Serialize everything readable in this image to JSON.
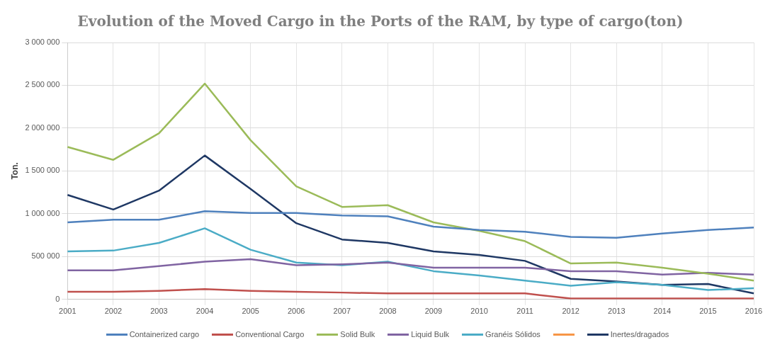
{
  "chart_data": {
    "type": "line",
    "title": "Evolution of the Moved Cargo in the Ports of the RAM, by type of cargo(ton)",
    "ylabel": "Ton.",
    "categories": [
      "2001",
      "2002",
      "2003",
      "2004",
      "2005",
      "2006",
      "2007",
      "2008",
      "2009",
      "2010",
      "2011",
      "2012",
      "2013",
      "2014",
      "2015",
      "2016"
    ],
    "series": [
      {
        "name": "Containerized cargo",
        "color": "#4f81bd",
        "values": [
          900000,
          930000,
          930000,
          1030000,
          1010000,
          1010000,
          980000,
          970000,
          850000,
          810000,
          790000,
          730000,
          720000,
          770000,
          810000,
          840000
        ]
      },
      {
        "name": "Conventional Cargo",
        "color": "#c0504d",
        "values": [
          90000,
          90000,
          100000,
          120000,
          100000,
          90000,
          80000,
          70000,
          70000,
          70000,
          70000,
          10000,
          10000,
          10000,
          10000,
          10000
        ]
      },
      {
        "name": "Solid Bulk",
        "color": "#9bbb59",
        "values": [
          1780000,
          1630000,
          1940000,
          2520000,
          1860000,
          1320000,
          1080000,
          1100000,
          900000,
          800000,
          680000,
          420000,
          430000,
          370000,
          300000,
          220000
        ]
      },
      {
        "name": "Liquid Bulk",
        "color": "#8064a2",
        "values": [
          340000,
          340000,
          390000,
          440000,
          470000,
          400000,
          410000,
          430000,
          370000,
          370000,
          370000,
          330000,
          330000,
          290000,
          310000,
          290000
        ]
      },
      {
        "name": "Granéis Sólidos",
        "color": "#4bacc6",
        "values": [
          560000,
          570000,
          660000,
          830000,
          580000,
          430000,
          400000,
          440000,
          330000,
          280000,
          220000,
          160000,
          200000,
          170000,
          110000,
          130000
        ]
      },
      {
        "color": "#f79646",
        "values": [
          null,
          null,
          null,
          null,
          null,
          null,
          null,
          null,
          null,
          null,
          null,
          null,
          null,
          null,
          null,
          null
        ]
      },
      {
        "name": "Inertes/dragados",
        "color": "#1f3864",
        "values": [
          1220000,
          1050000,
          1270000,
          1680000,
          1290000,
          890000,
          700000,
          660000,
          560000,
          520000,
          450000,
          240000,
          210000,
          170000,
          180000,
          70000
        ]
      }
    ],
    "ylim": [
      0,
      3000000
    ],
    "yticks": [
      {
        "value": 0,
        "label": "0"
      },
      {
        "value": 500000,
        "label": "500 000"
      },
      {
        "value": 1000000,
        "label": "1 000 000"
      },
      {
        "value": 1500000,
        "label": "1 500 000"
      },
      {
        "value": 2000000,
        "label": "2 000 000"
      },
      {
        "value": 2500000,
        "label": "2 500 000"
      },
      {
        "value": 3000000,
        "label": "3 000 000"
      }
    ],
    "grid": true,
    "legend": "bottom",
    "marker": "none",
    "line_style": "solid"
  }
}
